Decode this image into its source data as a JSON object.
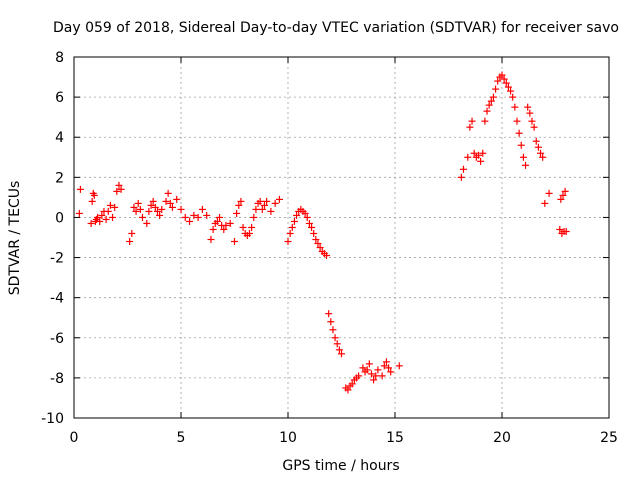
{
  "chart_data": {
    "type": "scatter",
    "title": "Day 059 of 2018, Sidereal Day-to-day VTEC variation (SDTVAR) for receiver savo",
    "xlabel": "GPS time / hours",
    "ylabel": "SDTVAR / TECUs",
    "xlim": [
      0,
      25
    ],
    "ylim": [
      -10,
      8
    ],
    "xticks": [
      0,
      5,
      10,
      15,
      20,
      25
    ],
    "yticks": [
      -10,
      -8,
      -6,
      -4,
      -2,
      0,
      2,
      4,
      6,
      8
    ],
    "grid": true,
    "marker": "+",
    "color": "#ff0000",
    "series": [
      {
        "name": "SDTVAR",
        "x": [
          0.25,
          0.3,
          0.8,
          0.85,
          0.9,
          0.95,
          1.0,
          1.05,
          1.1,
          1.2,
          1.3,
          1.4,
          1.5,
          1.6,
          1.7,
          1.8,
          1.9,
          2.0,
          2.1,
          2.2,
          2.6,
          2.7,
          2.8,
          2.9,
          3.0,
          3.1,
          3.2,
          3.4,
          3.5,
          3.6,
          3.7,
          3.8,
          3.9,
          4.0,
          4.1,
          4.3,
          4.4,
          4.5,
          4.6,
          4.8,
          5.0,
          5.2,
          5.4,
          5.6,
          5.8,
          6.0,
          6.2,
          6.4,
          6.5,
          6.6,
          6.7,
          6.8,
          6.9,
          7.0,
          7.1,
          7.3,
          7.5,
          7.6,
          7.7,
          7.8,
          7.9,
          8.0,
          8.1,
          8.2,
          8.3,
          8.4,
          8.5,
          8.6,
          8.7,
          8.8,
          8.9,
          9.0,
          9.2,
          9.4,
          9.6,
          10.0,
          10.1,
          10.2,
          10.3,
          10.4,
          10.5,
          10.6,
          10.7,
          10.8,
          10.9,
          11.0,
          11.1,
          11.2,
          11.3,
          11.4,
          11.5,
          11.6,
          11.7,
          11.8,
          11.9,
          12.0,
          12.1,
          12.2,
          12.3,
          12.4,
          12.5,
          12.7,
          12.8,
          12.9,
          13.0,
          13.1,
          13.2,
          13.3,
          13.5,
          13.6,
          13.7,
          13.8,
          13.9,
          14.0,
          14.1,
          14.2,
          14.4,
          14.5,
          14.6,
          14.7,
          14.8,
          15.2,
          18.1,
          18.2,
          18.4,
          18.5,
          18.6,
          18.7,
          18.8,
          18.9,
          19.0,
          19.1,
          19.2,
          19.3,
          19.4,
          19.5,
          19.6,
          19.7,
          19.8,
          19.9,
          20.0,
          20.1,
          20.2,
          20.3,
          20.4,
          20.5,
          20.6,
          20.7,
          20.8,
          20.9,
          21.0,
          21.1,
          21.2,
          21.3,
          21.4,
          21.5,
          21.6,
          21.7,
          21.8,
          21.9,
          22.0,
          22.2,
          22.7,
          22.8,
          22.9,
          23.0,
          22.75,
          22.85,
          22.95
        ],
        "y": [
          0.2,
          1.4,
          -0.3,
          0.8,
          1.2,
          1.1,
          -0.2,
          -0.1,
          0.0,
          -0.2,
          0.1,
          0.3,
          -0.1,
          0.3,
          0.6,
          0.0,
          0.5,
          1.3,
          1.6,
          1.4,
          -1.2,
          -0.8,
          0.5,
          0.3,
          0.7,
          0.4,
          0.0,
          -0.3,
          0.3,
          0.6,
          0.8,
          0.5,
          0.3,
          0.1,
          0.4,
          0.8,
          1.2,
          0.7,
          0.5,
          0.9,
          0.4,
          0.0,
          -0.2,
          0.1,
          0.0,
          0.4,
          0.1,
          -1.1,
          -0.6,
          -0.3,
          -0.2,
          0.0,
          -0.4,
          -0.6,
          -0.4,
          -0.3,
          -1.2,
          0.2,
          0.6,
          0.8,
          -0.5,
          -0.8,
          -0.9,
          -0.8,
          -0.5,
          0.0,
          0.4,
          0.7,
          0.8,
          0.4,
          0.6,
          0.8,
          0.3,
          0.7,
          0.9,
          -1.2,
          -0.8,
          -0.5,
          -0.2,
          0.1,
          0.3,
          0.4,
          0.3,
          0.2,
          0.0,
          -0.3,
          -0.5,
          -0.8,
          -1.1,
          -1.3,
          -1.5,
          -1.7,
          -1.8,
          -1.9,
          -4.8,
          -5.2,
          -5.6,
          -6.0,
          -6.3,
          -6.6,
          -6.8,
          -8.5,
          -8.6,
          -8.4,
          -8.3,
          -8.1,
          -8.0,
          -7.9,
          -7.5,
          -7.7,
          -7.6,
          -7.3,
          -7.8,
          -8.1,
          -7.9,
          -7.6,
          -7.9,
          -7.4,
          -7.2,
          -7.5,
          -7.7,
          -7.4,
          2.0,
          2.4,
          3.0,
          4.5,
          4.8,
          3.2,
          3.0,
          3.1,
          2.8,
          3.2,
          4.8,
          5.3,
          5.6,
          5.8,
          6.0,
          6.4,
          6.8,
          7.0,
          7.1,
          6.9,
          6.7,
          6.5,
          6.3,
          6.0,
          5.5,
          4.8,
          4.2,
          3.6,
          3.0,
          2.6,
          5.5,
          5.2,
          4.8,
          4.5,
          3.8,
          3.5,
          3.2,
          3.0,
          0.7,
          1.2,
          -0.6,
          -0.8,
          -0.7,
          -0.7,
          0.9,
          1.1,
          1.3
        ]
      }
    ]
  }
}
